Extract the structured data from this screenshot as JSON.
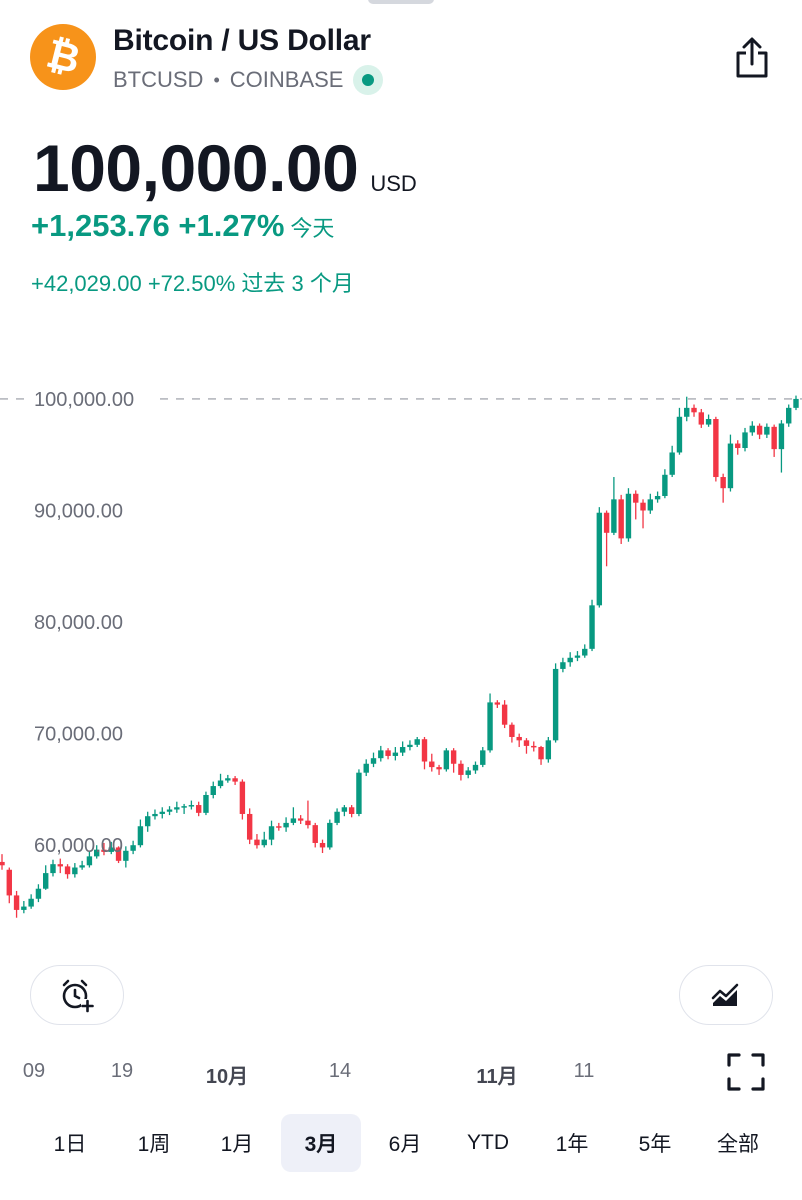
{
  "header": {
    "logo_glyph": "₿",
    "title": "Bitcoin / US Dollar",
    "symbol": "BTCUSD",
    "separator": "•",
    "exchange": "COINBASE",
    "status": "live",
    "share_icon": "share-icon"
  },
  "quote": {
    "price": "100,000.00",
    "currency": "USD",
    "change_today": "+1,253.76 +1.27%",
    "change_today_label": "今天",
    "change_period": "+42,029.00 +72.50% 过去 3 个月"
  },
  "colors": {
    "up": "#089981",
    "down": "#f23645",
    "text": "#131722",
    "muted": "#6a6d78",
    "accent": "#f7931a"
  },
  "chart_data": {
    "type": "candlestick",
    "y_ticks": [
      "100,000.00",
      "90,000.00",
      "80,000.00",
      "70,000.00",
      "60,000.00"
    ],
    "y_tick_values": [
      100000,
      90000,
      80000,
      70000,
      60000
    ],
    "ylim": [
      52400,
      100800
    ],
    "current_price": 100000,
    "x_labels": [
      {
        "label": "09",
        "bold": false
      },
      {
        "label": "19",
        "bold": false
      },
      {
        "label": "10月",
        "bold": true
      },
      {
        "label": "14",
        "bold": false
      },
      {
        "label": "11月",
        "bold": true
      },
      {
        "label": "11",
        "bold": false
      }
    ],
    "candles": [
      [
        58500,
        58200,
        59200,
        57800
      ],
      [
        57800,
        55500,
        58000,
        54800
      ],
      [
        55500,
        54200,
        55900,
        53500
      ],
      [
        54200,
        54500,
        55000,
        53900
      ],
      [
        54500,
        55200,
        55600,
        54300
      ],
      [
        55200,
        56100,
        56500,
        54900
      ],
      [
        56100,
        57500,
        58200,
        56000
      ],
      [
        57500,
        58300,
        58700,
        57200
      ],
      [
        58300,
        58100,
        58800,
        57500
      ],
      [
        58100,
        57400,
        58300,
        57000
      ],
      [
        57400,
        58000,
        58400,
        57100
      ],
      [
        58000,
        58200,
        58600,
        57800
      ],
      [
        58200,
        59000,
        59400,
        58000
      ],
      [
        59000,
        59600,
        60000,
        58800
      ],
      [
        59600,
        59400,
        60200,
        59100
      ],
      [
        59400,
        59800,
        60300,
        59200
      ],
      [
        59800,
        58600,
        59900,
        58400
      ],
      [
        58600,
        59500,
        59900,
        58000
      ],
      [
        59500,
        60000,
        60400,
        59200
      ],
      [
        60000,
        61700,
        62300,
        59800
      ],
      [
        61700,
        62600,
        63000,
        61200
      ],
      [
        62600,
        62800,
        63200,
        62300
      ],
      [
        62800,
        63000,
        63400,
        62400
      ],
      [
        63000,
        63200,
        63500,
        62700
      ],
      [
        63200,
        63400,
        63900,
        62900
      ],
      [
        63400,
        63500,
        63700,
        62800
      ],
      [
        63500,
        63600,
        64000,
        63200
      ],
      [
        63600,
        62900,
        63900,
        62600
      ],
      [
        62900,
        64500,
        64800,
        62700
      ],
      [
        64500,
        65300,
        65700,
        64200
      ],
      [
        65300,
        65800,
        66400,
        65100
      ],
      [
        65800,
        66000,
        66300,
        65600
      ],
      [
        66000,
        65700,
        66200,
        65400
      ],
      [
        65700,
        62800,
        65900,
        62300
      ],
      [
        62800,
        60500,
        63300,
        60100
      ],
      [
        60500,
        60000,
        61000,
        59700
      ],
      [
        60000,
        60500,
        61200,
        59800
      ],
      [
        60500,
        61700,
        62200,
        60000
      ],
      [
        61700,
        61600,
        62000,
        61300
      ],
      [
        61600,
        62000,
        62500,
        61200
      ],
      [
        62000,
        62400,
        63400,
        61800
      ],
      [
        62400,
        62200,
        62700,
        61900
      ],
      [
        62200,
        61800,
        64000,
        61500
      ],
      [
        61800,
        60200,
        62000,
        59800
      ],
      [
        60200,
        59800,
        60500,
        59300
      ],
      [
        59800,
        62000,
        62300,
        59600
      ],
      [
        62000,
        63000,
        63300,
        61800
      ],
      [
        63000,
        63400,
        63600,
        62600
      ],
      [
        63400,
        62800,
        63600,
        62500
      ],
      [
        62800,
        66500,
        66800,
        62600
      ],
      [
        66500,
        67300,
        67700,
        66200
      ],
      [
        67300,
        67800,
        68300,
        67000
      ],
      [
        67800,
        68500,
        68900,
        67500
      ],
      [
        68500,
        68000,
        68700,
        67700
      ],
      [
        68000,
        68300,
        68800,
        67600
      ],
      [
        68300,
        68800,
        69300,
        68000
      ],
      [
        68800,
        69000,
        69400,
        68500
      ],
      [
        69000,
        69500,
        69700,
        68800
      ],
      [
        69500,
        67500,
        69700,
        66800
      ],
      [
        67500,
        67000,
        68200,
        66600
      ],
      [
        67000,
        66800,
        67200,
        66300
      ],
      [
        66800,
        68500,
        68700,
        66600
      ],
      [
        68500,
        67300,
        68700,
        66500
      ],
      [
        67300,
        66300,
        67600,
        65800
      ],
      [
        66300,
        66700,
        67000,
        66000
      ],
      [
        66700,
        67200,
        67500,
        66400
      ],
      [
        67200,
        68500,
        68800,
        67000
      ],
      [
        68500,
        72800,
        73600,
        68300
      ],
      [
        72800,
        72600,
        73000,
        72300
      ],
      [
        72600,
        70800,
        73000,
        70500
      ],
      [
        70800,
        69700,
        71000,
        69200
      ],
      [
        69700,
        69400,
        70000,
        68800
      ],
      [
        69400,
        68900,
        69600,
        68200
      ],
      [
        68900,
        68800,
        69300,
        68400
      ],
      [
        68800,
        67700,
        68900,
        67200
      ],
      [
        67700,
        69400,
        69700,
        67400
      ],
      [
        69400,
        75800,
        76300,
        69200
      ],
      [
        75800,
        76400,
        76800,
        75500
      ],
      [
        76400,
        76800,
        77300,
        76000
      ],
      [
        76800,
        77000,
        77400,
        76500
      ],
      [
        77000,
        77600,
        78000,
        76800
      ],
      [
        77600,
        81500,
        82000,
        77400
      ],
      [
        81500,
        89800,
        90300,
        81300
      ],
      [
        89800,
        88000,
        90000,
        85000
      ],
      [
        88000,
        91000,
        93000,
        87800
      ],
      [
        91000,
        87500,
        91400,
        87000
      ],
      [
        87500,
        91500,
        92000,
        87200
      ],
      [
        91500,
        90700,
        91800,
        89200
      ],
      [
        90700,
        90000,
        91000,
        88400
      ],
      [
        90000,
        91000,
        91500,
        89700
      ],
      [
        91000,
        91300,
        91700,
        90700
      ],
      [
        91300,
        93200,
        93700,
        91100
      ],
      [
        93200,
        95200,
        95800,
        93000
      ],
      [
        95200,
        98400,
        99200,
        95000
      ],
      [
        98400,
        99200,
        100200,
        98000
      ],
      [
        99200,
        98800,
        99500,
        98400
      ],
      [
        98800,
        97700,
        99100,
        97400
      ],
      [
        97700,
        98200,
        98600,
        97500
      ],
      [
        98200,
        93000,
        98400,
        92600
      ],
      [
        93000,
        92000,
        93300,
        90700
      ],
      [
        92000,
        96000,
        96800,
        91700
      ],
      [
        96000,
        95600,
        96300,
        95000
      ],
      [
        95600,
        97000,
        97400,
        95300
      ],
      [
        97000,
        97600,
        98000,
        96700
      ],
      [
        97600,
        96800,
        97800,
        96400
      ],
      [
        96800,
        97500,
        97800,
        96500
      ],
      [
        97500,
        95500,
        97700,
        94800
      ],
      [
        95500,
        97800,
        98100,
        93400
      ],
      [
        97800,
        99200,
        99500,
        97500
      ],
      [
        99200,
        100000,
        100300,
        99000
      ]
    ]
  },
  "buttons": {
    "alert_icon": "alarm-plus-icon",
    "indicator_icon": "chart-indicator-icon",
    "fullscreen_icon": "fullscreen-icon"
  },
  "ranges": [
    {
      "label": "1日",
      "active": false
    },
    {
      "label": "1周",
      "active": false
    },
    {
      "label": "1月",
      "active": false
    },
    {
      "label": "3月",
      "active": true
    },
    {
      "label": "6月",
      "active": false
    },
    {
      "label": "YTD",
      "active": false
    },
    {
      "label": "1年",
      "active": false
    },
    {
      "label": "5年",
      "active": false
    },
    {
      "label": "全部",
      "active": false
    }
  ]
}
